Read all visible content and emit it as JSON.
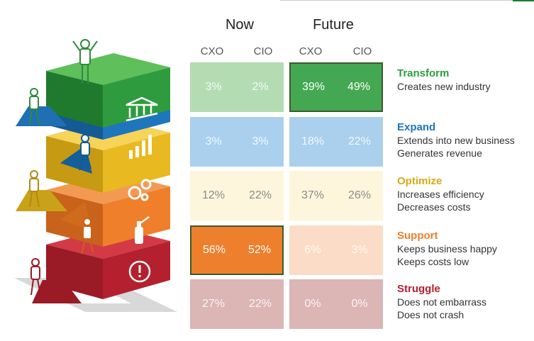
{
  "headers": {
    "now": "Now",
    "future": "Future",
    "cxo": "CXO",
    "cio": "CIO"
  },
  "levels": [
    {
      "name": "Transform",
      "desc": [
        "Creates new industry"
      ],
      "color": "#2e9c3e",
      "now": [
        "3%",
        "2%"
      ],
      "future": [
        "39%",
        "49%"
      ],
      "icon": "bank-icon"
    },
    {
      "name": "Expand",
      "desc": [
        "Extends into new business",
        "Generates revenue"
      ],
      "color": "#1e76bd",
      "now": [
        "3%",
        "3%"
      ],
      "future": [
        "18%",
        "22%"
      ],
      "icon": "bar-chart-icon"
    },
    {
      "name": "Optimize",
      "desc": [
        "Increases efficiency",
        "Decreases costs"
      ],
      "color": "#e8b920",
      "now": [
        "12%",
        "22%"
      ],
      "future": [
        "37%",
        "26%"
      ],
      "icon": "gears-icon"
    },
    {
      "name": "Support",
      "desc": [
        "Keeps business happy",
        "Keeps costs low"
      ],
      "color": "#ef7f2a",
      "now": [
        "56%",
        "52%"
      ],
      "future": [
        "6%",
        "3%"
      ],
      "icon": "fire-extinguisher-icon"
    },
    {
      "name": "Struggle",
      "desc": [
        "Does not embarrass",
        "Does not crash"
      ],
      "color": "#b5202e",
      "now": [
        "27%",
        "22%"
      ],
      "future": [
        "0%",
        "0%"
      ],
      "icon": "warning-icon"
    }
  ],
  "chart_data": {
    "type": "table",
    "columns": [
      "Now CXO",
      "Now CIO",
      "Future CXO",
      "Future CIO"
    ],
    "rows": [
      "Transform",
      "Expand",
      "Optimize",
      "Support",
      "Struggle"
    ],
    "values": [
      [
        3,
        2,
        39,
        49
      ],
      [
        3,
        3,
        18,
        22
      ],
      [
        12,
        22,
        37,
        26
      ],
      [
        56,
        52,
        6,
        3
      ],
      [
        27,
        22,
        0,
        0
      ]
    ],
    "highlighted": [
      {
        "row": "Transform",
        "group": "Future"
      },
      {
        "row": "Support",
        "group": "Now"
      }
    ]
  }
}
